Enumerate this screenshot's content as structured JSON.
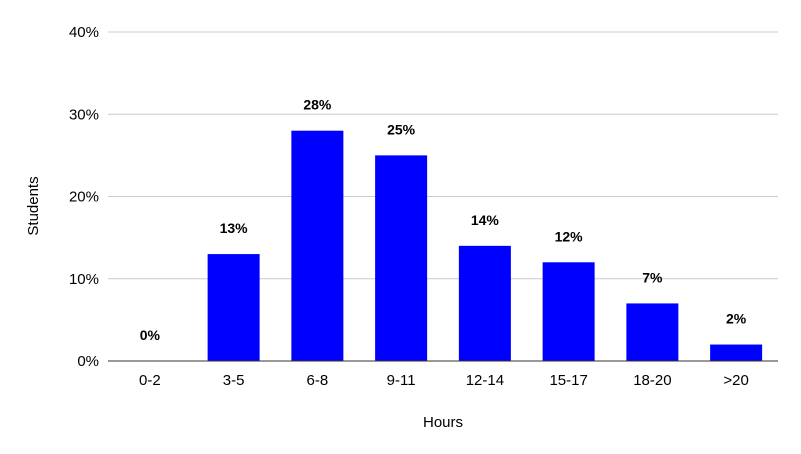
{
  "chart_data": {
    "type": "bar",
    "title": "",
    "xlabel": "Hours",
    "ylabel": "Students",
    "categories": [
      "0-2",
      "3-5",
      "6-8",
      "9-11",
      "12-14",
      "15-17",
      "18-20",
      ">20"
    ],
    "values": [
      0,
      13,
      28,
      25,
      14,
      12,
      7,
      2
    ],
    "data_labels": [
      "0%",
      "13%",
      "28%",
      "25%",
      "14%",
      "12%",
      "7%",
      "2%"
    ],
    "yticks": [
      0,
      10,
      20,
      30,
      40
    ],
    "ytick_labels": [
      "0%",
      "10%",
      "20%",
      "30%",
      "40%"
    ],
    "ylim": [
      0,
      40
    ],
    "grid": true,
    "legend": "none",
    "bar_color": "#0000ff",
    "grid_color": "#cccccc"
  }
}
